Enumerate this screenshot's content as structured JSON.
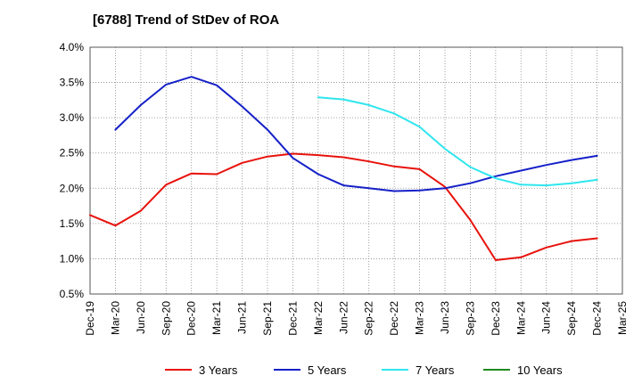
{
  "chart_data": {
    "type": "line",
    "title": "[6788]  Trend of StDev of ROA",
    "xlabel": "",
    "ylabel": "",
    "x": [
      "Dec-19",
      "Mar-20",
      "Jun-20",
      "Sep-20",
      "Dec-20",
      "Mar-21",
      "Jun-21",
      "Sep-21",
      "Dec-21",
      "Mar-22",
      "Jun-22",
      "Sep-22",
      "Dec-22",
      "Mar-23",
      "Jun-23",
      "Sep-23",
      "Dec-23",
      "Mar-24",
      "Jun-24",
      "Sep-24",
      "Dec-24",
      "Mar-25"
    ],
    "ylim": [
      0.5,
      4.0
    ],
    "yticks": [
      "0.5%",
      "1.0%",
      "1.5%",
      "2.0%",
      "2.5%",
      "3.0%",
      "3.5%",
      "4.0%"
    ],
    "grid": true,
    "legend_position": "bottom",
    "series": [
      {
        "name": "3 Years",
        "color": "#e8120c",
        "values": [
          1.62,
          1.47,
          1.68,
          2.05,
          2.21,
          2.2,
          2.36,
          2.45,
          2.49,
          2.47,
          2.44,
          2.38,
          2.31,
          2.27,
          2.02,
          1.55,
          0.98,
          1.02,
          1.16,
          1.25,
          1.29,
          null
        ]
      },
      {
        "name": "5 Years",
        "color": "#1520c8",
        "values": [
          null,
          2.83,
          3.18,
          3.47,
          3.58,
          3.46,
          3.16,
          2.83,
          2.43,
          2.2,
          2.04,
          2.0,
          1.96,
          1.97,
          2.0,
          2.07,
          2.17,
          2.25,
          2.33,
          2.4,
          2.46,
          null
        ]
      },
      {
        "name": "7 Years",
        "color": "#2ee6ee",
        "values": [
          null,
          null,
          null,
          null,
          null,
          null,
          null,
          null,
          null,
          3.29,
          3.26,
          3.18,
          3.06,
          2.87,
          2.56,
          2.3,
          2.14,
          2.05,
          2.04,
          2.07,
          2.12,
          null
        ]
      },
      {
        "name": "10 Years",
        "color": "#1f8a1f",
        "values": [
          null,
          null,
          null,
          null,
          null,
          null,
          null,
          null,
          null,
          null,
          null,
          null,
          null,
          null,
          null,
          null,
          null,
          null,
          null,
          null,
          null,
          null
        ]
      }
    ]
  }
}
